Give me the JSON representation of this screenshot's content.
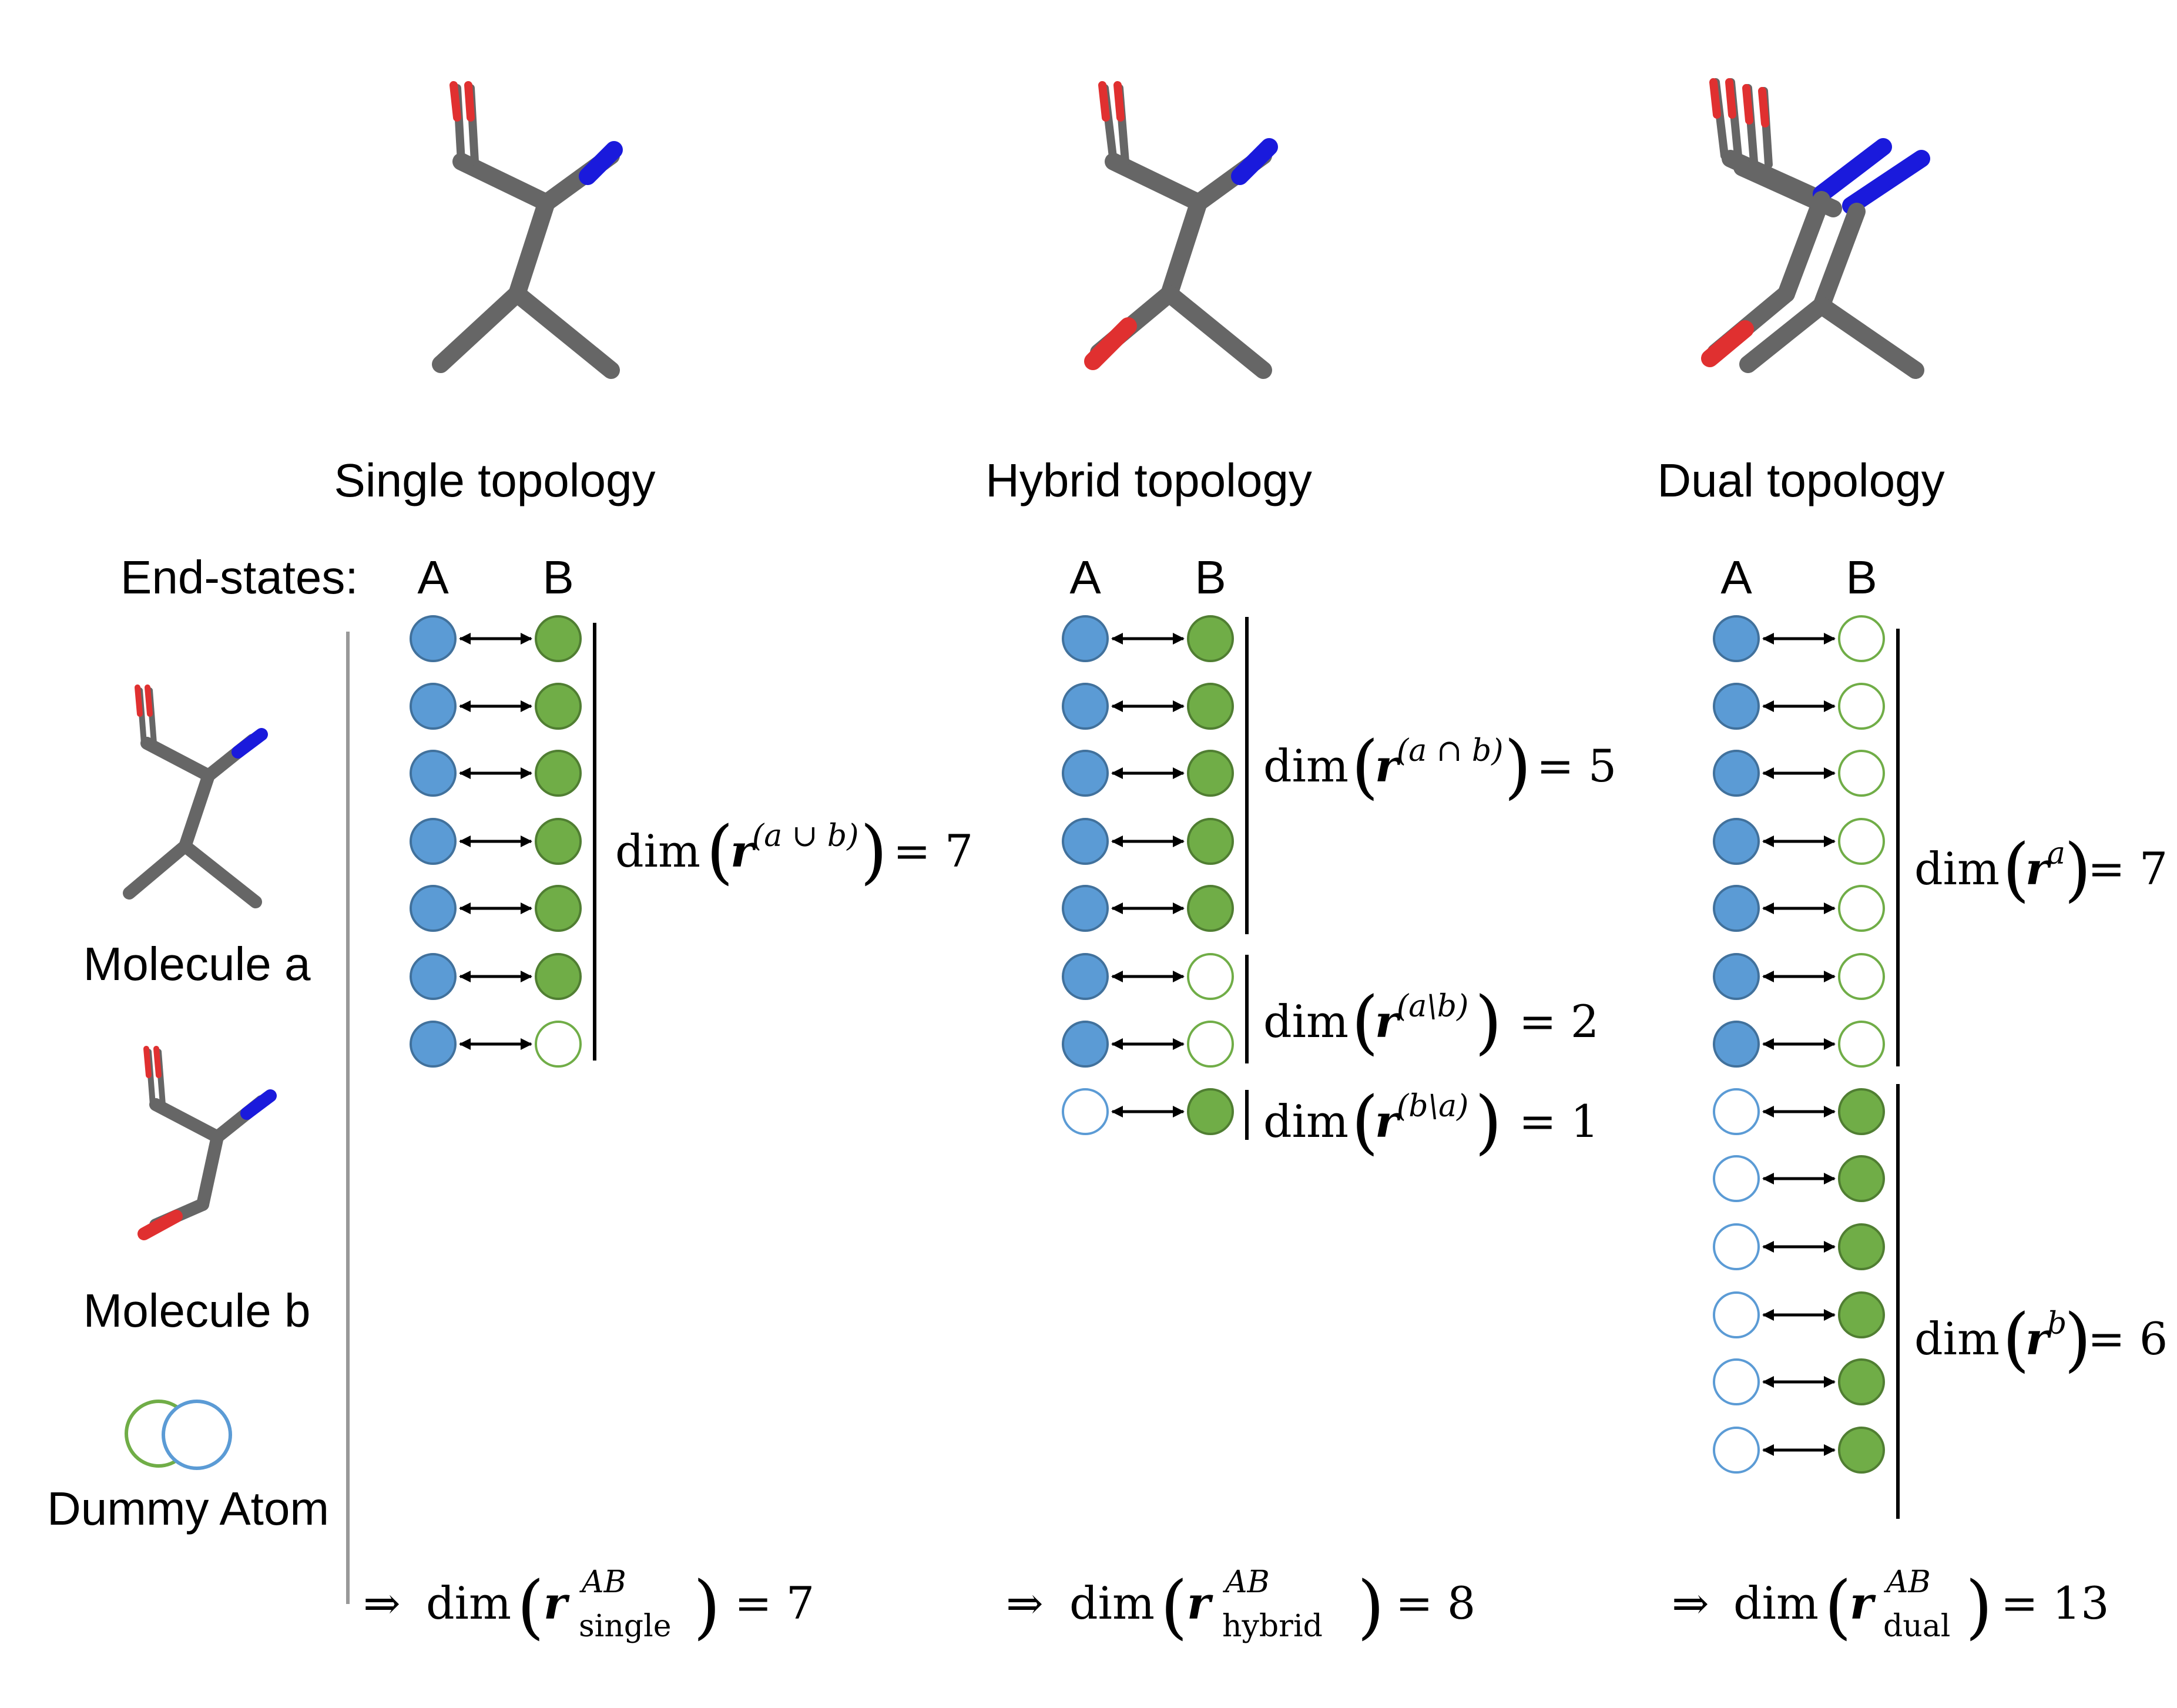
{
  "topologies": [
    {
      "title": "Single topology",
      "states": [
        "A",
        "B"
      ],
      "group_labels": [
        {
          "prefix": "dim",
          "symbol": "r",
          "superscript": "(a ∪ b)",
          "value": "= 7"
        }
      ],
      "summary": {
        "arrow": "⇒",
        "prefix": "dim",
        "symbol": "r",
        "superscript": "AB",
        "subscript": "single",
        "value": "= 7"
      }
    },
    {
      "title": "Hybrid topology",
      "states": [
        "A",
        "B"
      ],
      "group_labels": [
        {
          "prefix": "dim",
          "symbol": "r",
          "superscript": "(a ∩ b)",
          "value": "= 5"
        },
        {
          "prefix": "dim",
          "symbol": "r",
          "superscript": "(a\\b)",
          "value": "= 2"
        },
        {
          "prefix": "dim",
          "symbol": "r",
          "superscript": "(b\\a)",
          "value": "= 1"
        }
      ],
      "summary": {
        "arrow": "⇒",
        "prefix": "dim",
        "symbol": "r",
        "superscript": "AB",
        "subscript": "hybrid",
        "value": "= 8"
      }
    },
    {
      "title": "Dual topology",
      "states": [
        "A",
        "B"
      ],
      "group_labels": [
        {
          "prefix": "dim",
          "symbol": "r",
          "superscript": "a",
          "value": "= 7"
        },
        {
          "prefix": "dim",
          "symbol": "r",
          "superscript": "b",
          "value": "= 6"
        }
      ],
      "summary": {
        "arrow": "⇒",
        "prefix": "dim",
        "symbol": "r",
        "superscript": "AB",
        "subscript": "dual",
        "value": "= 13"
      }
    }
  ],
  "end_states_label": "End-states:",
  "legend": {
    "molecule_a": "Molecule a",
    "molecule_b": "Molecule b",
    "dummy_atom": "Dummy Atom"
  },
  "colors": {
    "state_a_fill": "#5b9bd5",
    "state_a_stroke": "#41719c",
    "state_b_fill": "#70ad47",
    "state_b_stroke": "#507e32",
    "dummy_a_stroke": "#5b9bd5",
    "dummy_b_stroke": "#70ad47",
    "carbon": "#666666",
    "oxygen": "#e03030",
    "nitrogen": "#1a1adc"
  }
}
